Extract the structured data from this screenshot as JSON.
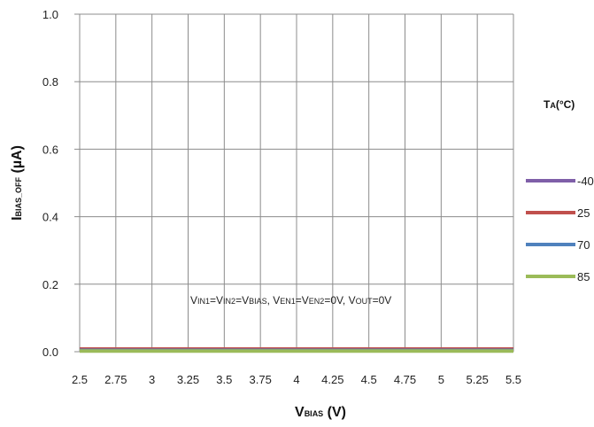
{
  "chart_data": {
    "type": "line",
    "xlabel": {
      "main": "V",
      "sub": "BIAS",
      "rest": " (V)"
    },
    "ylabel": {
      "main": "I",
      "sub": "BIAS_OFF",
      "rest": " (µA)"
    },
    "xlim": [
      2.5,
      5.5
    ],
    "ylim": [
      0,
      1.0
    ],
    "x_ticks": [
      "2.5",
      "2.75",
      "3",
      "3.25",
      "3.5",
      "3.75",
      "4",
      "4.25",
      "4.5",
      "4.75",
      "5",
      "5.25",
      "5.5"
    ],
    "y_ticks": [
      "0.0",
      "0.2",
      "0.4",
      "0.6",
      "0.8",
      "1.0"
    ],
    "grid": true,
    "legend": {
      "title": {
        "main": "T",
        "sub": "A",
        "rest": "(°C)"
      },
      "position": "right"
    },
    "annotation": [
      {
        "t": "V",
        "s": false
      },
      {
        "t": "IN1",
        "s": true
      },
      {
        "t": "=V",
        "s": false
      },
      {
        "t": "IN2",
        "s": true
      },
      {
        "t": "=V",
        "s": false
      },
      {
        "t": "BIAS",
        "s": true
      },
      {
        "t": ",  V",
        "s": false
      },
      {
        "t": "EN1",
        "s": true
      },
      {
        "t": "=V",
        "s": false
      },
      {
        "t": "EN2",
        "s": true
      },
      {
        "t": "=0V,  V",
        "s": false
      },
      {
        "t": "OUT",
        "s": true
      },
      {
        "t": "=0V",
        "s": false
      }
    ],
    "x": [
      2.5,
      2.75,
      3,
      3.25,
      3.5,
      3.75,
      4,
      4.25,
      4.5,
      4.75,
      5,
      5.25,
      5.5
    ],
    "series": [
      {
        "name": "-40",
        "color": "#7f5fa8",
        "values": [
          0.003,
          0.003,
          0.003,
          0.003,
          0.003,
          0.003,
          0.003,
          0.003,
          0.003,
          0.003,
          0.003,
          0.003,
          0.003
        ]
      },
      {
        "name": "25",
        "color": "#c0504d",
        "values": [
          0.008,
          0.008,
          0.008,
          0.008,
          0.008,
          0.008,
          0.008,
          0.008,
          0.008,
          0.008,
          0.008,
          0.008,
          0.008
        ]
      },
      {
        "name": "70",
        "color": "#4f81bd",
        "values": [
          0.004,
          0.004,
          0.004,
          0.004,
          0.004,
          0.004,
          0.004,
          0.004,
          0.004,
          0.004,
          0.004,
          0.004,
          0.004
        ]
      },
      {
        "name": "85",
        "color": "#9bbb59",
        "values": [
          0.002,
          0.002,
          0.002,
          0.002,
          0.002,
          0.002,
          0.002,
          0.002,
          0.002,
          0.002,
          0.002,
          0.002,
          0.002
        ]
      }
    ]
  }
}
